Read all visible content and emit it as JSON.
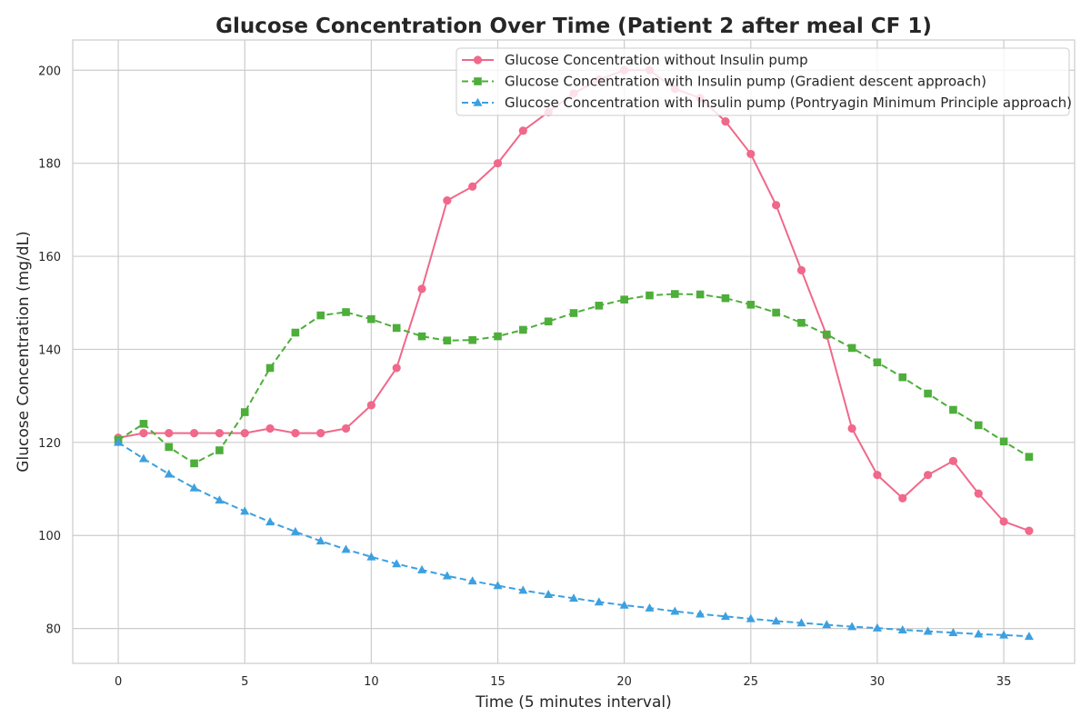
{
  "chart_data": {
    "type": "line",
    "title": "Glucose Concentration Over Time (Patient 2 after meal CF 1)",
    "xlabel": "Time (5 minutes interval)",
    "ylabel": "Glucose Concentration (mg/dL)",
    "xlim": [
      -1.8,
      37.8
    ],
    "ylim": [
      72.5,
      206.5
    ],
    "xticks": [
      0,
      5,
      10,
      15,
      20,
      25,
      30,
      35
    ],
    "yticks": [
      80,
      100,
      120,
      140,
      160,
      180,
      200
    ],
    "grid": true,
    "legend_position": "top-right",
    "x": [
      0,
      1,
      2,
      3,
      4,
      5,
      6,
      7,
      8,
      9,
      10,
      11,
      12,
      13,
      14,
      15,
      16,
      17,
      18,
      19,
      20,
      21,
      22,
      23,
      24,
      25,
      26,
      27,
      28,
      29,
      30,
      31,
      32,
      33,
      34,
      35,
      36
    ],
    "series": [
      {
        "name": "Glucose Concentration without Insulin pump",
        "color": "#f0688a",
        "marker": "circle",
        "dash": "solid",
        "values": [
          121,
          122,
          122,
          122,
          122,
          122,
          123,
          122,
          122,
          123,
          128,
          136,
          153,
          172,
          175,
          180,
          187,
          191,
          195,
          198,
          200,
          200,
          196,
          194,
          189,
          182,
          171,
          157,
          143,
          123,
          113,
          108,
          113,
          116,
          109,
          103,
          101
        ]
      },
      {
        "name": "Glucose Concentration with Insulin pump (Gradient descent approach)",
        "color": "#4dae3a",
        "marker": "square",
        "dash": "dashed",
        "values": [
          120.5,
          124,
          119,
          115.5,
          118.3,
          126.5,
          136,
          143.6,
          147.3,
          148,
          146.5,
          144.6,
          142.8,
          141.9,
          142,
          142.8,
          144.2,
          146,
          147.8,
          149.4,
          150.7,
          151.6,
          151.9,
          151.8,
          151,
          149.6,
          147.9,
          145.7,
          143.2,
          140.3,
          137.2,
          134,
          130.5,
          127,
          123.7,
          120.2,
          116.9
        ]
      },
      {
        "name": "Glucose Concentration with Insulin pump (Pontryagin Minimum Principle approach)",
        "color": "#3ca0e0",
        "marker": "triangle",
        "dash": "dashed",
        "values": [
          120,
          116.5,
          113.2,
          110.2,
          107.6,
          105.2,
          102.9,
          100.8,
          98.8,
          97,
          95.4,
          93.9,
          92.6,
          91.3,
          90.2,
          89.2,
          88.2,
          87.3,
          86.5,
          85.7,
          85,
          84.4,
          83.7,
          83.1,
          82.6,
          82.1,
          81.6,
          81.2,
          80.8,
          80.4,
          80.1,
          79.7,
          79.4,
          79.1,
          78.8,
          78.6,
          78.3
        ]
      }
    ]
  }
}
